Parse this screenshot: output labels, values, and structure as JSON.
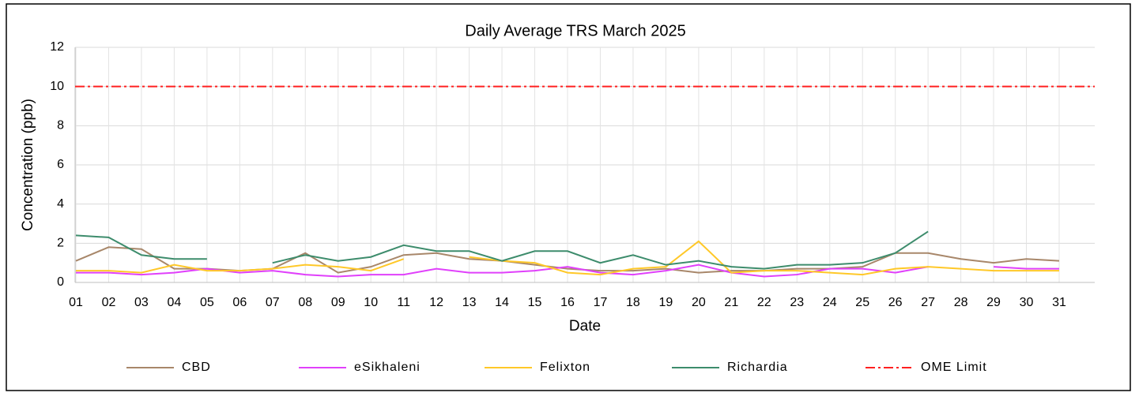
{
  "chart_data": {
    "type": "line",
    "title": "Daily Average  TRS March 2025",
    "x_label": "Date",
    "y_label": "Concentration (ppb)",
    "categories": [
      "01",
      "02",
      "03",
      "04",
      "05",
      "06",
      "07",
      "08",
      "09",
      "10",
      "11",
      "12",
      "13",
      "14",
      "15",
      "16",
      "17",
      "18",
      "19",
      "20",
      "21",
      "22",
      "23",
      "24",
      "25",
      "26",
      "27",
      "28",
      "29",
      "30",
      "31"
    ],
    "series": [
      {
        "name": "CBD",
        "color": "#a8876a",
        "values": [
          1.1,
          1.8,
          1.7,
          0.7,
          0.7,
          0.6,
          0.7,
          1.5,
          0.5,
          0.8,
          1.4,
          1.5,
          1.2,
          1.1,
          0.9,
          0.7,
          0.6,
          0.6,
          0.7,
          0.5,
          0.6,
          0.6,
          0.7,
          0.7,
          0.8,
          1.5,
          1.5,
          1.2,
          1.0,
          1.2,
          1.1
        ]
      },
      {
        "name": "eSikhaleni",
        "color": "#e040fb",
        "values": [
          0.5,
          0.5,
          0.4,
          0.5,
          0.7,
          0.5,
          0.6,
          0.4,
          0.3,
          0.4,
          0.4,
          0.7,
          0.5,
          0.5,
          0.6,
          0.8,
          0.5,
          0.4,
          0.6,
          0.9,
          0.5,
          0.3,
          0.4,
          0.7,
          0.7,
          0.5,
          0.8,
          null,
          0.8,
          0.7,
          0.7
        ]
      },
      {
        "name": "Felixton",
        "color": "#ffc828",
        "values": [
          0.6,
          0.6,
          0.5,
          0.9,
          0.6,
          0.6,
          0.7,
          0.9,
          0.8,
          0.6,
          1.2,
          null,
          1.3,
          1.1,
          1.0,
          0.5,
          0.4,
          0.7,
          0.8,
          2.1,
          0.5,
          0.6,
          0.6,
          0.5,
          0.4,
          0.7,
          0.8,
          0.7,
          0.6,
          0.6,
          0.6
        ]
      },
      {
        "name": "Richardia",
        "color": "#3d8c6c",
        "values": [
          2.4,
          2.3,
          1.4,
          1.2,
          1.2,
          null,
          1.0,
          1.4,
          1.1,
          1.3,
          1.9,
          1.6,
          1.6,
          1.1,
          1.6,
          1.6,
          1.0,
          1.4,
          0.9,
          1.1,
          0.8,
          0.7,
          0.9,
          0.9,
          1.0,
          1.5,
          2.6,
          null,
          null,
          null,
          null
        ]
      }
    ],
    "limit": {
      "name": "OME Limit",
      "value": 10,
      "color": "#ff2020"
    },
    "ylim": [
      0,
      12
    ],
    "yticks": [
      0,
      2,
      4,
      6,
      8,
      10,
      12
    ],
    "grid": true
  }
}
